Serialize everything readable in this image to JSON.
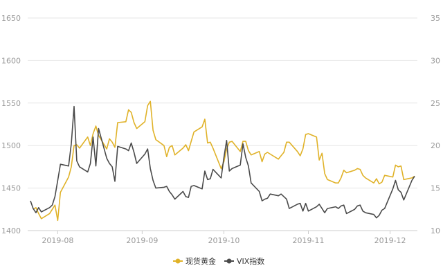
{
  "chart_data": {
    "type": "line",
    "title": "",
    "xlabel": "",
    "ylabel": "",
    "x_ticks": [
      "2019-08",
      "2019-09",
      "2019-10",
      "2019-11",
      "2019-12"
    ],
    "y_left": {
      "range": [
        1400,
        1650
      ],
      "ticks": [
        1400,
        1450,
        1500,
        1550,
        1600,
        1650
      ]
    },
    "y_right": {
      "range": [
        10,
        35
      ],
      "ticks": [
        10,
        15,
        20,
        25,
        30,
        35
      ]
    },
    "grid": "horizontal",
    "legend_position": "bottom-center",
    "x_range": [
      "2019-07-22",
      "2019-12-10"
    ],
    "series": [
      {
        "name": "现货黄金",
        "axis": "left",
        "color": "#E0B228",
        "points": [
          [
            "2019-07-23",
            1425
          ],
          [
            "2019-07-24",
            1427
          ],
          [
            "2019-07-25",
            1420
          ],
          [
            "2019-07-26",
            1414
          ],
          [
            "2019-07-29",
            1420
          ],
          [
            "2019-07-30",
            1425
          ],
          [
            "2019-07-31",
            1430
          ],
          [
            "2019-08-01",
            1412
          ],
          [
            "2019-08-02",
            1445
          ],
          [
            "2019-08-05",
            1463
          ],
          [
            "2019-08-06",
            1475
          ],
          [
            "2019-08-07",
            1500
          ],
          [
            "2019-08-08",
            1501
          ],
          [
            "2019-08-09",
            1497
          ],
          [
            "2019-08-12",
            1510
          ],
          [
            "2019-08-13",
            1500
          ],
          [
            "2019-08-14",
            1514
          ],
          [
            "2019-08-15",
            1523
          ],
          [
            "2019-08-16",
            1512
          ],
          [
            "2019-08-19",
            1496
          ],
          [
            "2019-08-20",
            1508
          ],
          [
            "2019-08-21",
            1504
          ],
          [
            "2019-08-22",
            1498
          ],
          [
            "2019-08-23",
            1527
          ],
          [
            "2019-08-26",
            1528
          ],
          [
            "2019-08-27",
            1542
          ],
          [
            "2019-08-28",
            1539
          ],
          [
            "2019-08-29",
            1527
          ],
          [
            "2019-08-30",
            1520
          ],
          [
            "2019-09-02",
            1528
          ],
          [
            "2019-09-03",
            1547
          ],
          [
            "2019-09-04",
            1552
          ],
          [
            "2019-09-05",
            1518
          ],
          [
            "2019-09-06",
            1507
          ],
          [
            "2019-09-09",
            1500
          ],
          [
            "2019-09-10",
            1487
          ],
          [
            "2019-09-11",
            1498
          ],
          [
            "2019-09-12",
            1500
          ],
          [
            "2019-09-13",
            1489
          ],
          [
            "2019-09-16",
            1497
          ],
          [
            "2019-09-17",
            1501
          ],
          [
            "2019-09-18",
            1494
          ],
          [
            "2019-09-19",
            1505
          ],
          [
            "2019-09-20",
            1516
          ],
          [
            "2019-09-23",
            1522
          ],
          [
            "2019-09-24",
            1531
          ],
          [
            "2019-09-25",
            1503
          ],
          [
            "2019-09-26",
            1504
          ],
          [
            "2019-09-27",
            1497
          ],
          [
            "2019-09-30",
            1473
          ],
          [
            "2019-10-01",
            1481
          ],
          [
            "2019-10-02",
            1496
          ],
          [
            "2019-10-03",
            1504
          ],
          [
            "2019-10-04",
            1505
          ],
          [
            "2019-10-07",
            1493
          ],
          [
            "2019-10-08",
            1505
          ],
          [
            "2019-10-09",
            1505
          ],
          [
            "2019-10-10",
            1494
          ],
          [
            "2019-10-11",
            1489
          ],
          [
            "2019-10-14",
            1493
          ],
          [
            "2019-10-15",
            1481
          ],
          [
            "2019-10-16",
            1490
          ],
          [
            "2019-10-17",
            1492
          ],
          [
            "2019-10-18",
            1490
          ],
          [
            "2019-10-21",
            1484
          ],
          [
            "2019-10-22",
            1488
          ],
          [
            "2019-10-23",
            1492
          ],
          [
            "2019-10-24",
            1504
          ],
          [
            "2019-10-25",
            1504
          ],
          [
            "2019-10-28",
            1493
          ],
          [
            "2019-10-29",
            1488
          ],
          [
            "2019-10-30",
            1496
          ],
          [
            "2019-10-31",
            1513
          ],
          [
            "2019-11-01",
            1514
          ],
          [
            "2019-11-04",
            1510
          ],
          [
            "2019-11-05",
            1483
          ],
          [
            "2019-11-06",
            1491
          ],
          [
            "2019-11-07",
            1467
          ],
          [
            "2019-11-08",
            1460
          ],
          [
            "2019-11-11",
            1456
          ],
          [
            "2019-11-12",
            1456
          ],
          [
            "2019-11-13",
            1462
          ],
          [
            "2019-11-14",
            1471
          ],
          [
            "2019-11-15",
            1468
          ],
          [
            "2019-11-18",
            1471
          ],
          [
            "2019-11-19",
            1473
          ],
          [
            "2019-11-20",
            1472
          ],
          [
            "2019-11-21",
            1465
          ],
          [
            "2019-11-22",
            1462
          ],
          [
            "2019-11-25",
            1456
          ],
          [
            "2019-11-26",
            1461
          ],
          [
            "2019-11-27",
            1455
          ],
          [
            "2019-11-28",
            1457
          ],
          [
            "2019-11-29",
            1465
          ],
          [
            "2019-12-02",
            1463
          ],
          [
            "2019-12-03",
            1477
          ],
          [
            "2019-12-04",
            1475
          ],
          [
            "2019-12-05",
            1476
          ],
          [
            "2019-12-06",
            1460
          ],
          [
            "2019-12-09",
            1462
          ],
          [
            "2019-12-10",
            1464
          ]
        ]
      },
      {
        "name": "VIX指数",
        "axis": "right",
        "color": "#4A4A4A",
        "points": [
          [
            "2019-07-22",
            13.5
          ],
          [
            "2019-07-23",
            12.6
          ],
          [
            "2019-07-24",
            12.1
          ],
          [
            "2019-07-25",
            12.7
          ],
          [
            "2019-07-26",
            12.2
          ],
          [
            "2019-07-29",
            12.7
          ],
          [
            "2019-07-30",
            13.0
          ],
          [
            "2019-07-31",
            14.0
          ],
          [
            "2019-08-01",
            15.9
          ],
          [
            "2019-08-02",
            17.8
          ],
          [
            "2019-08-05",
            17.6
          ],
          [
            "2019-08-06",
            20.2
          ],
          [
            "2019-08-07",
            24.6
          ],
          [
            "2019-08-08",
            18.2
          ],
          [
            "2019-08-09",
            17.5
          ],
          [
            "2019-08-12",
            16.9
          ],
          [
            "2019-08-13",
            17.9
          ],
          [
            "2019-08-14",
            21.0
          ],
          [
            "2019-08-15",
            17.6
          ],
          [
            "2019-08-16",
            22.0
          ],
          [
            "2019-08-19",
            18.5
          ],
          [
            "2019-08-20",
            17.9
          ],
          [
            "2019-08-21",
            17.5
          ],
          [
            "2019-08-22",
            15.8
          ],
          [
            "2019-08-23",
            19.9
          ],
          [
            "2019-08-26",
            19.6
          ],
          [
            "2019-08-27",
            19.4
          ],
          [
            "2019-08-28",
            20.3
          ],
          [
            "2019-08-29",
            19.2
          ],
          [
            "2019-08-30",
            17.9
          ],
          [
            "2019-09-02",
            19.0
          ],
          [
            "2019-09-03",
            19.6
          ],
          [
            "2019-09-04",
            17.3
          ],
          [
            "2019-09-05",
            15.9
          ],
          [
            "2019-09-06",
            15.0
          ],
          [
            "2019-09-09",
            15.1
          ],
          [
            "2019-09-10",
            15.2
          ],
          [
            "2019-09-11",
            14.6
          ],
          [
            "2019-09-12",
            14.2
          ],
          [
            "2019-09-13",
            13.7
          ],
          [
            "2019-09-16",
            14.6
          ],
          [
            "2019-09-17",
            14.0
          ],
          [
            "2019-09-18",
            13.9
          ],
          [
            "2019-09-19",
            15.2
          ],
          [
            "2019-09-20",
            15.3
          ],
          [
            "2019-09-23",
            14.9
          ],
          [
            "2019-09-24",
            17.0
          ],
          [
            "2019-09-25",
            16.0
          ],
          [
            "2019-09-26",
            16.1
          ],
          [
            "2019-09-27",
            17.2
          ],
          [
            "2019-09-30",
            16.2
          ],
          [
            "2019-10-01",
            18.6
          ],
          [
            "2019-10-02",
            20.6
          ],
          [
            "2019-10-03",
            17.0
          ],
          [
            "2019-10-04",
            17.3
          ],
          [
            "2019-10-07",
            17.7
          ],
          [
            "2019-10-08",
            20.2
          ],
          [
            "2019-10-09",
            18.6
          ],
          [
            "2019-10-10",
            17.6
          ],
          [
            "2019-10-11",
            15.6
          ],
          [
            "2019-10-14",
            14.6
          ],
          [
            "2019-10-15",
            13.5
          ],
          [
            "2019-10-16",
            13.7
          ],
          [
            "2019-10-17",
            13.8
          ],
          [
            "2019-10-18",
            14.3
          ],
          [
            "2019-10-21",
            14.1
          ],
          [
            "2019-10-22",
            14.3
          ],
          [
            "2019-10-23",
            14.0
          ],
          [
            "2019-10-24",
            13.7
          ],
          [
            "2019-10-25",
            12.6
          ],
          [
            "2019-10-28",
            13.1
          ],
          [
            "2019-10-29",
            13.2
          ],
          [
            "2019-10-30",
            12.3
          ],
          [
            "2019-10-31",
            13.2
          ],
          [
            "2019-11-01",
            12.3
          ],
          [
            "2019-11-04",
            12.8
          ],
          [
            "2019-11-05",
            13.1
          ],
          [
            "2019-11-06",
            12.6
          ],
          [
            "2019-11-07",
            12.1
          ],
          [
            "2019-11-08",
            12.6
          ],
          [
            "2019-11-11",
            12.8
          ],
          [
            "2019-11-12",
            12.6
          ],
          [
            "2019-11-13",
            12.9
          ],
          [
            "2019-11-14",
            13.0
          ],
          [
            "2019-11-15",
            12.0
          ],
          [
            "2019-11-18",
            12.5
          ],
          [
            "2019-11-19",
            12.9
          ],
          [
            "2019-11-20",
            13.0
          ],
          [
            "2019-11-21",
            12.3
          ],
          [
            "2019-11-22",
            12.1
          ],
          [
            "2019-11-25",
            11.9
          ],
          [
            "2019-11-26",
            11.5
          ],
          [
            "2019-11-27",
            11.8
          ],
          [
            "2019-11-28",
            12.4
          ],
          [
            "2019-11-29",
            12.6
          ],
          [
            "2019-12-02",
            14.9
          ],
          [
            "2019-12-03",
            15.9
          ],
          [
            "2019-12-04",
            14.8
          ],
          [
            "2019-12-05",
            14.5
          ],
          [
            "2019-12-06",
            13.6
          ],
          [
            "2019-12-09",
            15.9
          ],
          [
            "2019-12-10",
            16.4
          ]
        ]
      }
    ]
  }
}
